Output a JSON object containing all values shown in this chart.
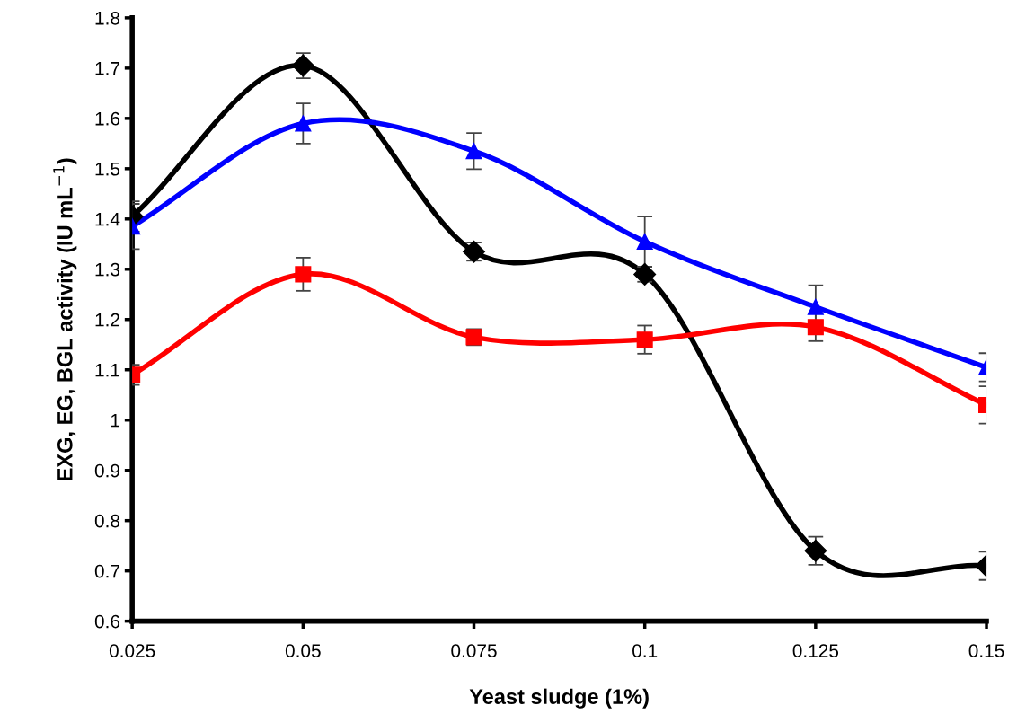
{
  "chart_data": {
    "type": "line",
    "xlabel": "Yeast sludge (1%)",
    "ylabel": "EXG, EG, BGL activity (IU mL$^{−1}$)",
    "x": [
      0.025,
      0.05,
      0.075,
      0.1,
      0.125,
      0.15
    ],
    "series": [
      {
        "color": "#000000",
        "marker": "diamond",
        "values": [
          1.405,
          1.705,
          1.335,
          1.29,
          0.74,
          0.71
        ],
        "errors": [
          0.03,
          0.025,
          0.018,
          0.015,
          0.028,
          0.028
        ]
      },
      {
        "color": "#ff0000",
        "marker": "square",
        "values": [
          1.09,
          1.29,
          1.165,
          1.16,
          1.185,
          1.03
        ],
        "errors": [
          0.02,
          0.033,
          0.016,
          0.028,
          0.028,
          0.037
        ]
      },
      {
        "color": "#0000ff",
        "marker": "triangle",
        "values": [
          1.385,
          1.59,
          1.535,
          1.355,
          1.225,
          1.105
        ],
        "errors": [
          0.045,
          0.04,
          0.036,
          0.05,
          0.043,
          0.028
        ]
      }
    ],
    "xlim": [
      0.025,
      0.15
    ],
    "xticks": [
      0.025,
      0.05,
      0.075,
      0.1,
      0.125,
      0.15
    ],
    "ylim": [
      0.6,
      1.8
    ],
    "yticks": [
      0.6,
      0.7,
      0.8,
      0.9,
      1,
      1.1,
      1.2,
      1.3,
      1.4,
      1.5,
      1.6,
      1.7,
      1.8
    ],
    "grid": false,
    "legend": false,
    "line_style": "solid"
  }
}
